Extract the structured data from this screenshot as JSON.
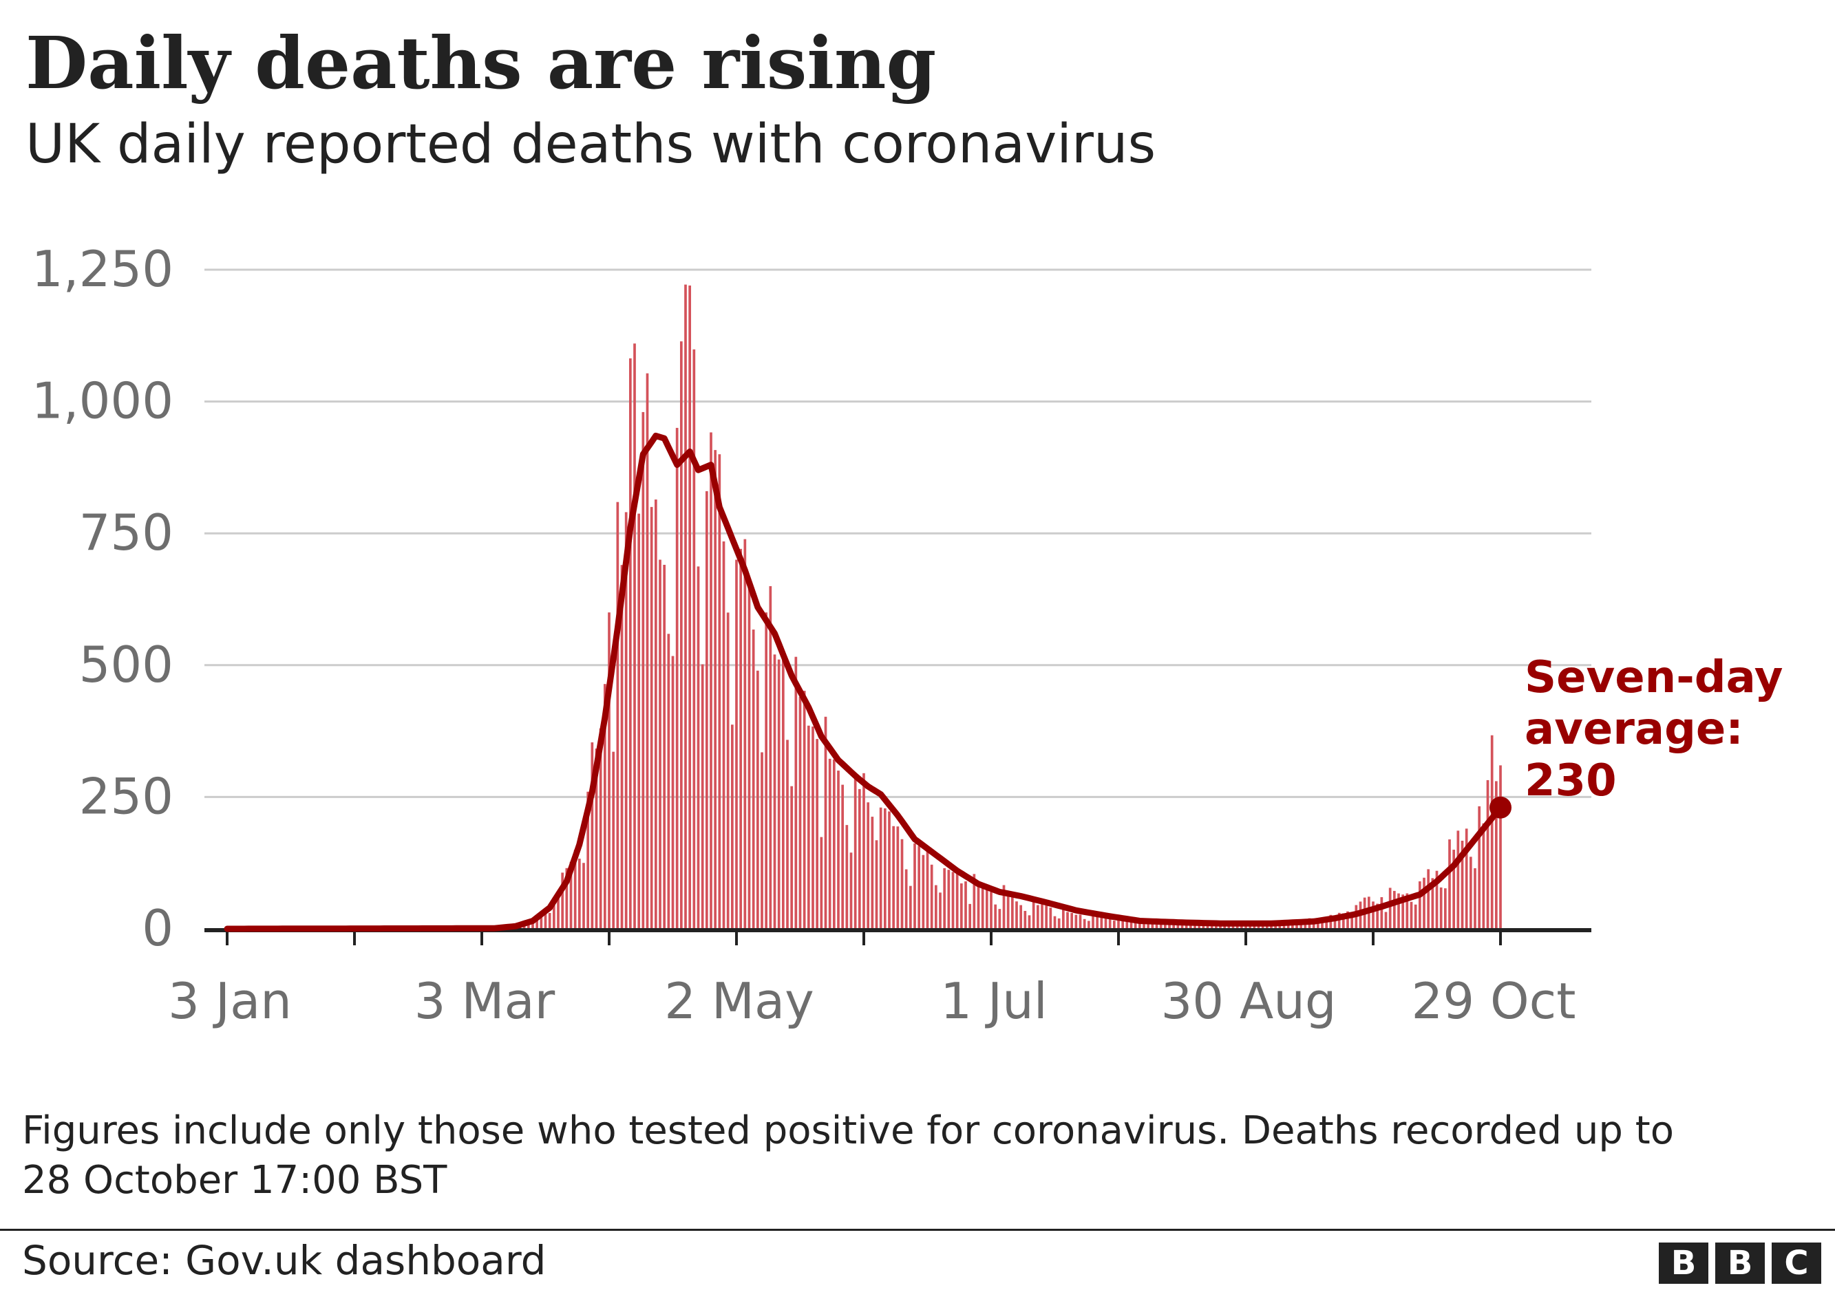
{
  "header": {
    "title": "Daily deaths are rising",
    "subtitle": "UK daily reported deaths with coronavirus"
  },
  "chart_data": {
    "type": "bar",
    "title": "Daily deaths are rising",
    "subtitle": "UK daily reported deaths with coronavirus",
    "xlabel": "",
    "ylabel": "",
    "x_range": [
      "2020-01-03",
      "2020-10-29"
    ],
    "ylim": [
      0,
      1250
    ],
    "y_ticks": [
      {
        "value": 0,
        "label": "0"
      },
      {
        "value": 250,
        "label": "250"
      },
      {
        "value": 500,
        "label": "500"
      },
      {
        "value": 750,
        "label": "750"
      },
      {
        "value": 1000,
        "label": "1,000"
      },
      {
        "value": 1250,
        "label": "1,250"
      }
    ],
    "x_ticks": [
      {
        "date": "2020-01-03",
        "label": "3 Jan"
      },
      {
        "date": "2020-03-03",
        "label": "3 Mar"
      },
      {
        "date": "2020-05-02",
        "label": "2 May"
      },
      {
        "date": "2020-07-01",
        "label": "1 Jul"
      },
      {
        "date": "2020-08-30",
        "label": "30 Aug"
      },
      {
        "date": "2020-10-29",
        "label": "29 Oct"
      }
    ],
    "grid": true,
    "daily_key_points": [
      [
        "2020-01-03",
        0
      ],
      [
        "2020-03-05",
        0
      ],
      [
        "2020-03-10",
        3
      ],
      [
        "2020-03-15",
        15
      ],
      [
        "2020-03-20",
        45
      ],
      [
        "2020-03-25",
        150
      ],
      [
        "2020-03-28",
        260
      ],
      [
        "2020-03-31",
        380
      ],
      [
        "2020-04-02",
        600
      ],
      [
        "2020-04-05",
        690
      ],
      [
        "2020-04-08",
        1110
      ],
      [
        "2020-04-10",
        980
      ],
      [
        "2020-04-12",
        800
      ],
      [
        "2020-04-14",
        700
      ],
      [
        "2020-04-18",
        950
      ],
      [
        "2020-04-21",
        1220
      ],
      [
        "2020-04-25",
        830
      ],
      [
        "2020-04-28",
        900
      ],
      [
        "2020-05-02",
        700
      ],
      [
        "2020-05-05",
        650
      ],
      [
        "2020-05-09",
        600
      ],
      [
        "2020-05-13",
        520
      ],
      [
        "2020-05-17",
        440
      ],
      [
        "2020-05-21",
        360
      ],
      [
        "2020-05-26",
        300
      ],
      [
        "2020-05-31",
        265
      ],
      [
        "2020-06-05",
        230
      ],
      [
        "2020-06-10",
        170
      ],
      [
        "2020-06-15",
        140
      ],
      [
        "2020-06-20",
        115
      ],
      [
        "2020-06-25",
        90
      ],
      [
        "2020-07-01",
        70
      ],
      [
        "2020-07-06",
        60
      ],
      [
        "2020-07-12",
        45
      ],
      [
        "2020-07-20",
        30
      ],
      [
        "2020-07-31",
        20
      ],
      [
        "2020-08-10",
        13
      ],
      [
        "2020-08-20",
        12
      ],
      [
        "2020-08-30",
        10
      ],
      [
        "2020-09-10",
        12
      ],
      [
        "2020-09-20",
        25
      ],
      [
        "2020-09-25",
        45
      ],
      [
        "2020-10-01",
        60
      ],
      [
        "2020-10-06",
        65
      ],
      [
        "2020-10-10",
        90
      ],
      [
        "2020-10-14",
        110
      ],
      [
        "2020-10-18",
        150
      ],
      [
        "2020-10-21",
        190
      ],
      [
        "2020-10-25",
        200
      ],
      [
        "2020-10-27",
        367
      ],
      [
        "2020-10-28",
        280
      ],
      [
        "2020-10-29",
        310
      ]
    ],
    "average_key_points": [
      [
        "2020-01-03",
        0
      ],
      [
        "2020-03-06",
        1
      ],
      [
        "2020-03-11",
        5
      ],
      [
        "2020-03-15",
        15
      ],
      [
        "2020-03-19",
        40
      ],
      [
        "2020-03-23",
        90
      ],
      [
        "2020-03-26",
        160
      ],
      [
        "2020-03-29",
        260
      ],
      [
        "2020-04-01",
        400
      ],
      [
        "2020-04-04",
        570
      ],
      [
        "2020-04-07",
        760
      ],
      [
        "2020-04-10",
        900
      ],
      [
        "2020-04-13",
        935
      ],
      [
        "2020-04-15",
        930
      ],
      [
        "2020-04-18",
        880
      ],
      [
        "2020-04-21",
        905
      ],
      [
        "2020-04-23",
        870
      ],
      [
        "2020-04-26",
        880
      ],
      [
        "2020-04-28",
        800
      ],
      [
        "2020-05-01",
        740
      ],
      [
        "2020-05-04",
        680
      ],
      [
        "2020-05-07",
        610
      ],
      [
        "2020-05-11",
        560
      ],
      [
        "2020-05-15",
        480
      ],
      [
        "2020-05-19",
        420
      ],
      [
        "2020-05-22",
        365
      ],
      [
        "2020-05-26",
        320
      ],
      [
        "2020-05-30",
        290
      ],
      [
        "2020-06-02",
        270
      ],
      [
        "2020-06-05",
        255
      ],
      [
        "2020-06-09",
        215
      ],
      [
        "2020-06-13",
        170
      ],
      [
        "2020-06-18",
        140
      ],
      [
        "2020-06-23",
        110
      ],
      [
        "2020-06-28",
        85
      ],
      [
        "2020-07-03",
        70
      ],
      [
        "2020-07-08",
        62
      ],
      [
        "2020-07-14",
        50
      ],
      [
        "2020-07-21",
        35
      ],
      [
        "2020-07-28",
        25
      ],
      [
        "2020-08-05",
        15
      ],
      [
        "2020-08-15",
        12
      ],
      [
        "2020-08-25",
        10
      ],
      [
        "2020-09-05",
        10
      ],
      [
        "2020-09-15",
        14
      ],
      [
        "2020-09-20",
        20
      ],
      [
        "2020-09-25",
        28
      ],
      [
        "2020-10-01",
        42
      ],
      [
        "2020-10-06",
        55
      ],
      [
        "2020-10-10",
        65
      ],
      [
        "2020-10-14",
        90
      ],
      [
        "2020-10-18",
        120
      ],
      [
        "2020-10-22",
        160
      ],
      [
        "2020-10-26",
        200
      ],
      [
        "2020-10-29",
        230
      ]
    ],
    "series": [
      {
        "name": "",
        "kind": "bar",
        "color": "#d4525a"
      },
      {
        "name": "Seven-day average",
        "kind": "line",
        "color": "#990000"
      }
    ],
    "annotations": [
      {
        "date": "2020-10-29",
        "value": 230,
        "lines": [
          "Seven-day",
          "average:",
          "230"
        ]
      }
    ]
  },
  "footnote": {
    "line1": "Figures include only those who tested positive for coronavirus. Deaths recorded up to",
    "line2": "28 October 17:00 BST"
  },
  "source": "Source: Gov.uk dashboard",
  "logo": {
    "letters": [
      "B",
      "B",
      "C"
    ]
  },
  "colors": {
    "bar": "#d4525a",
    "average_line": "#990000",
    "grid": "#cccccc",
    "axis": "#222222",
    "tick_label": "#6e6e6e",
    "text": "#222222"
  }
}
